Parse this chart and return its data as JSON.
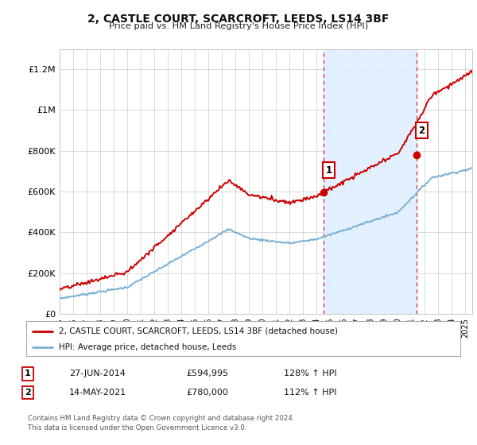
{
  "title": "2, CASTLE COURT, SCARCROFT, LEEDS, LS14 3BF",
  "subtitle": "Price paid vs. HM Land Registry's House Price Index (HPI)",
  "ylim": [
    0,
    1300000
  ],
  "xlim_start": 1995.0,
  "xlim_end": 2025.5,
  "sale1_date": 2014.49,
  "sale1_price": 594995,
  "sale1_label": "1",
  "sale2_date": 2021.37,
  "sale2_price": 780000,
  "sale2_label": "2",
  "red_color": "#cc0000",
  "blue_color": "#7ab0d4",
  "shading_color": "#ddeeff",
  "legend1_text": "2, CASTLE COURT, SCARCROFT, LEEDS, LS14 3BF (detached house)",
  "legend2_text": "HPI: Average price, detached house, Leeds",
  "table_row1": [
    "1",
    "27-JUN-2014",
    "£594,995",
    "128% ↑ HPI"
  ],
  "table_row2": [
    "2",
    "14-MAY-2021",
    "£780,000",
    "112% ↑ HPI"
  ],
  "footer": "Contains HM Land Registry data © Crown copyright and database right 2024.\nThis data is licensed under the Open Government Licence v3.0.",
  "ytick_labels": [
    "£0",
    "£200K",
    "£400K",
    "£600K",
    "£800K",
    "£1M",
    "£1.2M"
  ],
  "ytick_values": [
    0,
    200000,
    400000,
    600000,
    800000,
    1000000,
    1200000
  ],
  "background_color": "#ffffff",
  "grid_color": "#cccccc"
}
